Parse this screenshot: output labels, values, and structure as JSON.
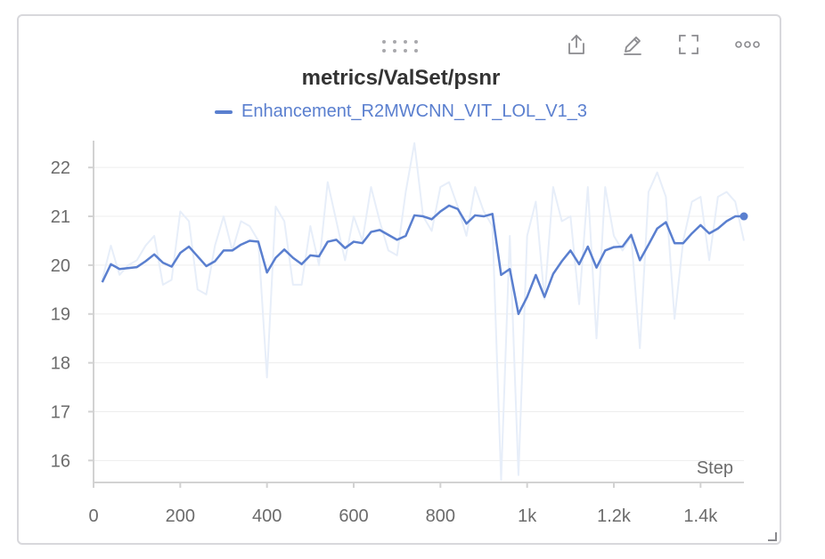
{
  "panel": {
    "title": "metrics/ValSet/psnr",
    "toolbar": [
      {
        "name": "share-icon"
      },
      {
        "name": "edit-icon"
      },
      {
        "name": "fullscreen-icon"
      },
      {
        "name": "more-options-icon"
      }
    ],
    "drag_icon": "drag-handle-icon",
    "resize_icon": "resize-corner-icon"
  },
  "colors": {
    "series": "#5a7fcf",
    "raw": "#e7eef9",
    "axis": "#d2d2d2",
    "grid": "#ededed",
    "text": "#6b6b6b",
    "title": "#333333"
  },
  "chart_data": {
    "type": "line",
    "title": "metrics/ValSet/psnr",
    "xlabel": "Step",
    "ylabel": "",
    "xlim": [
      0,
      1500
    ],
    "ylim": [
      15.55,
      22.55
    ],
    "x_ticks": [
      {
        "value": 0,
        "label": "0"
      },
      {
        "value": 200,
        "label": "200"
      },
      {
        "value": 400,
        "label": "400"
      },
      {
        "value": 600,
        "label": "600"
      },
      {
        "value": 800,
        "label": "800"
      },
      {
        "value": 1000,
        "label": "1k"
      },
      {
        "value": 1200,
        "label": "1.2k"
      },
      {
        "value": 1400,
        "label": "1.4k"
      }
    ],
    "y_ticks": [
      {
        "value": 16,
        "label": "16"
      },
      {
        "value": 17,
        "label": "17"
      },
      {
        "value": 18,
        "label": "18"
      },
      {
        "value": 19,
        "label": "19"
      },
      {
        "value": 20,
        "label": "20"
      },
      {
        "value": 21,
        "label": "21"
      },
      {
        "value": 22,
        "label": "22"
      }
    ],
    "grid": true,
    "legend": "top-center",
    "series": [
      {
        "name": "Enhancement_R2MWCNN_VIT_LOL_V1_3",
        "x": [
          20,
          40,
          60,
          100,
          120,
          140,
          160,
          180,
          200,
          220,
          260,
          280,
          300,
          320,
          340,
          360,
          380,
          400,
          420,
          440,
          460,
          480,
          500,
          520,
          540,
          560,
          580,
          600,
          620,
          640,
          660,
          680,
          700,
          720,
          740,
          760,
          780,
          800,
          820,
          840,
          860,
          880,
          900,
          920,
          940,
          960,
          980,
          1000,
          1020,
          1040,
          1060,
          1080,
          1100,
          1120,
          1140,
          1160,
          1180,
          1200,
          1220,
          1240,
          1260,
          1280,
          1300,
          1320,
          1340,
          1360,
          1380,
          1400,
          1420,
          1440,
          1460,
          1480,
          1500
        ],
        "y": [
          19.65,
          20.02,
          19.92,
          19.96,
          20.08,
          20.22,
          20.05,
          19.97,
          20.25,
          20.38,
          19.98,
          20.08,
          20.3,
          20.3,
          20.42,
          20.5,
          20.48,
          19.85,
          20.15,
          20.32,
          20.15,
          20.02,
          20.2,
          20.18,
          20.48,
          20.52,
          20.35,
          20.48,
          20.45,
          20.68,
          20.72,
          20.62,
          20.52,
          20.6,
          21.02,
          21.0,
          20.94,
          21.1,
          21.22,
          21.15,
          20.85,
          21.02,
          21.0,
          21.05,
          19.8,
          19.92,
          19.0,
          19.35,
          19.8,
          19.35,
          19.82,
          20.08,
          20.3,
          20.02,
          20.38,
          19.95,
          20.3,
          20.37,
          20.38,
          20.62,
          20.1,
          20.42,
          20.75,
          20.88,
          20.45,
          20.45,
          20.65,
          20.82,
          20.65,
          20.75,
          20.9,
          21.0,
          21.0
        ]
      }
    ],
    "raw_series": {
      "x": [
        20,
        40,
        60,
        80,
        100,
        120,
        140,
        160,
        180,
        200,
        220,
        240,
        260,
        280,
        300,
        320,
        340,
        360,
        380,
        400,
        420,
        440,
        460,
        480,
        500,
        520,
        540,
        560,
        580,
        600,
        620,
        640,
        660,
        680,
        700,
        720,
        740,
        760,
        780,
        800,
        820,
        840,
        860,
        880,
        900,
        920,
        940,
        960,
        980,
        1000,
        1020,
        1040,
        1060,
        1080,
        1100,
        1120,
        1140,
        1160,
        1180,
        1200,
        1220,
        1240,
        1260,
        1280,
        1300,
        1320,
        1340,
        1360,
        1380,
        1400,
        1420,
        1440,
        1460,
        1480,
        1500
      ],
      "y": [
        19.7,
        20.4,
        19.8,
        20.0,
        20.1,
        20.4,
        20.6,
        19.6,
        19.7,
        21.1,
        20.9,
        19.5,
        19.4,
        20.4,
        21.0,
        20.3,
        20.9,
        20.8,
        20.5,
        17.7,
        21.2,
        20.9,
        19.6,
        19.6,
        20.8,
        20.0,
        21.7,
        20.9,
        20.1,
        21.0,
        20.5,
        21.6,
        20.9,
        20.3,
        20.2,
        21.5,
        22.5,
        21.0,
        20.7,
        21.6,
        21.7,
        21.2,
        20.6,
        21.6,
        21.1,
        20.8,
        15.6,
        20.6,
        15.7,
        20.6,
        21.3,
        19.3,
        21.6,
        20.9,
        21.0,
        19.2,
        21.6,
        18.5,
        21.6,
        20.6,
        20.3,
        20.6,
        18.3,
        21.5,
        21.9,
        21.4,
        18.9,
        20.5,
        21.3,
        21.4,
        20.1,
        21.4,
        21.5,
        21.3,
        20.5
      ]
    }
  }
}
